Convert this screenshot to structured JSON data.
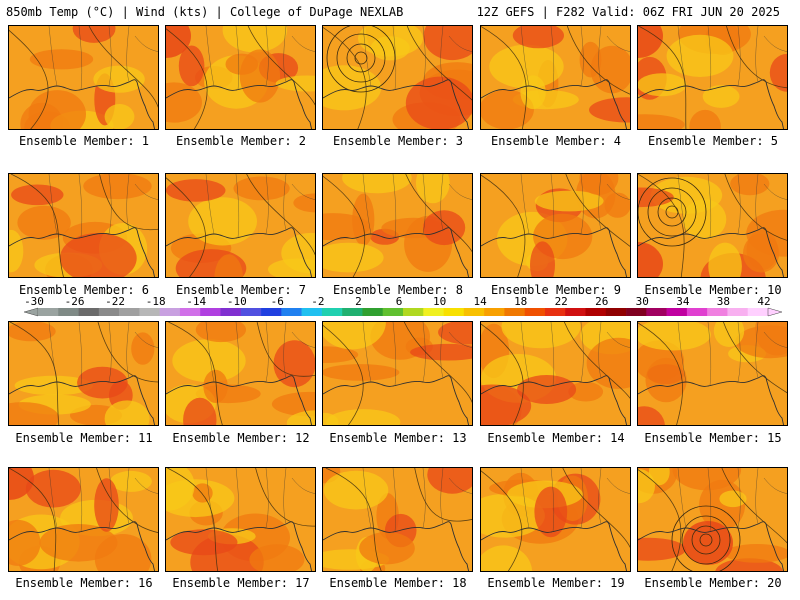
{
  "header": {
    "left": "850mb Temp (°C) | Wind (kts) | College of DuPage NEXLAB",
    "right": "12Z GEFS | F282 Valid: 06Z FRI JUN 20 2025"
  },
  "members": [
    "Ensemble Member: 1",
    "Ensemble Member: 2",
    "Ensemble Member: 3",
    "Ensemble Member: 4",
    "Ensemble Member: 5",
    "Ensemble Member: 6",
    "Ensemble Member: 7",
    "Ensemble Member: 8",
    "Ensemble Member: 9",
    "Ensemble Member: 10",
    "Ensemble Member: 11",
    "Ensemble Member: 12",
    "Ensemble Member: 13",
    "Ensemble Member: 14",
    "Ensemble Member: 15",
    "Ensemble Member: 16",
    "Ensemble Member: 17",
    "Ensemble Member: 18",
    "Ensemble Member: 19",
    "Ensemble Member: 20"
  ],
  "colorbar": {
    "ticks": [
      "-30",
      "-26",
      "-22",
      "-18",
      "-14",
      "-10",
      "-6",
      "-2",
      "2",
      "6",
      "10",
      "14",
      "18",
      "22",
      "26",
      "30",
      "34",
      "38",
      "42"
    ],
    "colors": [
      "#9aa3a0",
      "#7f8a86",
      "#6b6b6b",
      "#8a8a8a",
      "#a0a0a0",
      "#b7b7b7",
      "#c8a0e0",
      "#d070e8",
      "#b040e0",
      "#8030d0",
      "#5050e0",
      "#2040e0",
      "#2080f0",
      "#20c0f0",
      "#20d0b0",
      "#20b070",
      "#30a030",
      "#60c030",
      "#b0d820",
      "#f0f020",
      "#f8e000",
      "#f8c000",
      "#f8a000",
      "#f07800",
      "#f05000",
      "#e83010",
      "#d01010",
      "#b00000",
      "#900000",
      "#800020",
      "#a00060",
      "#c000a0",
      "#e040d0",
      "#f080e0",
      "#f8b0f0",
      "#ffd0ff"
    ]
  },
  "palette": {
    "base": "#f5a020",
    "warm": "#f07a10",
    "hot": "#e84818",
    "cool": "#f8c818",
    "coolest": "#f0e000",
    "coast": "#303030"
  }
}
